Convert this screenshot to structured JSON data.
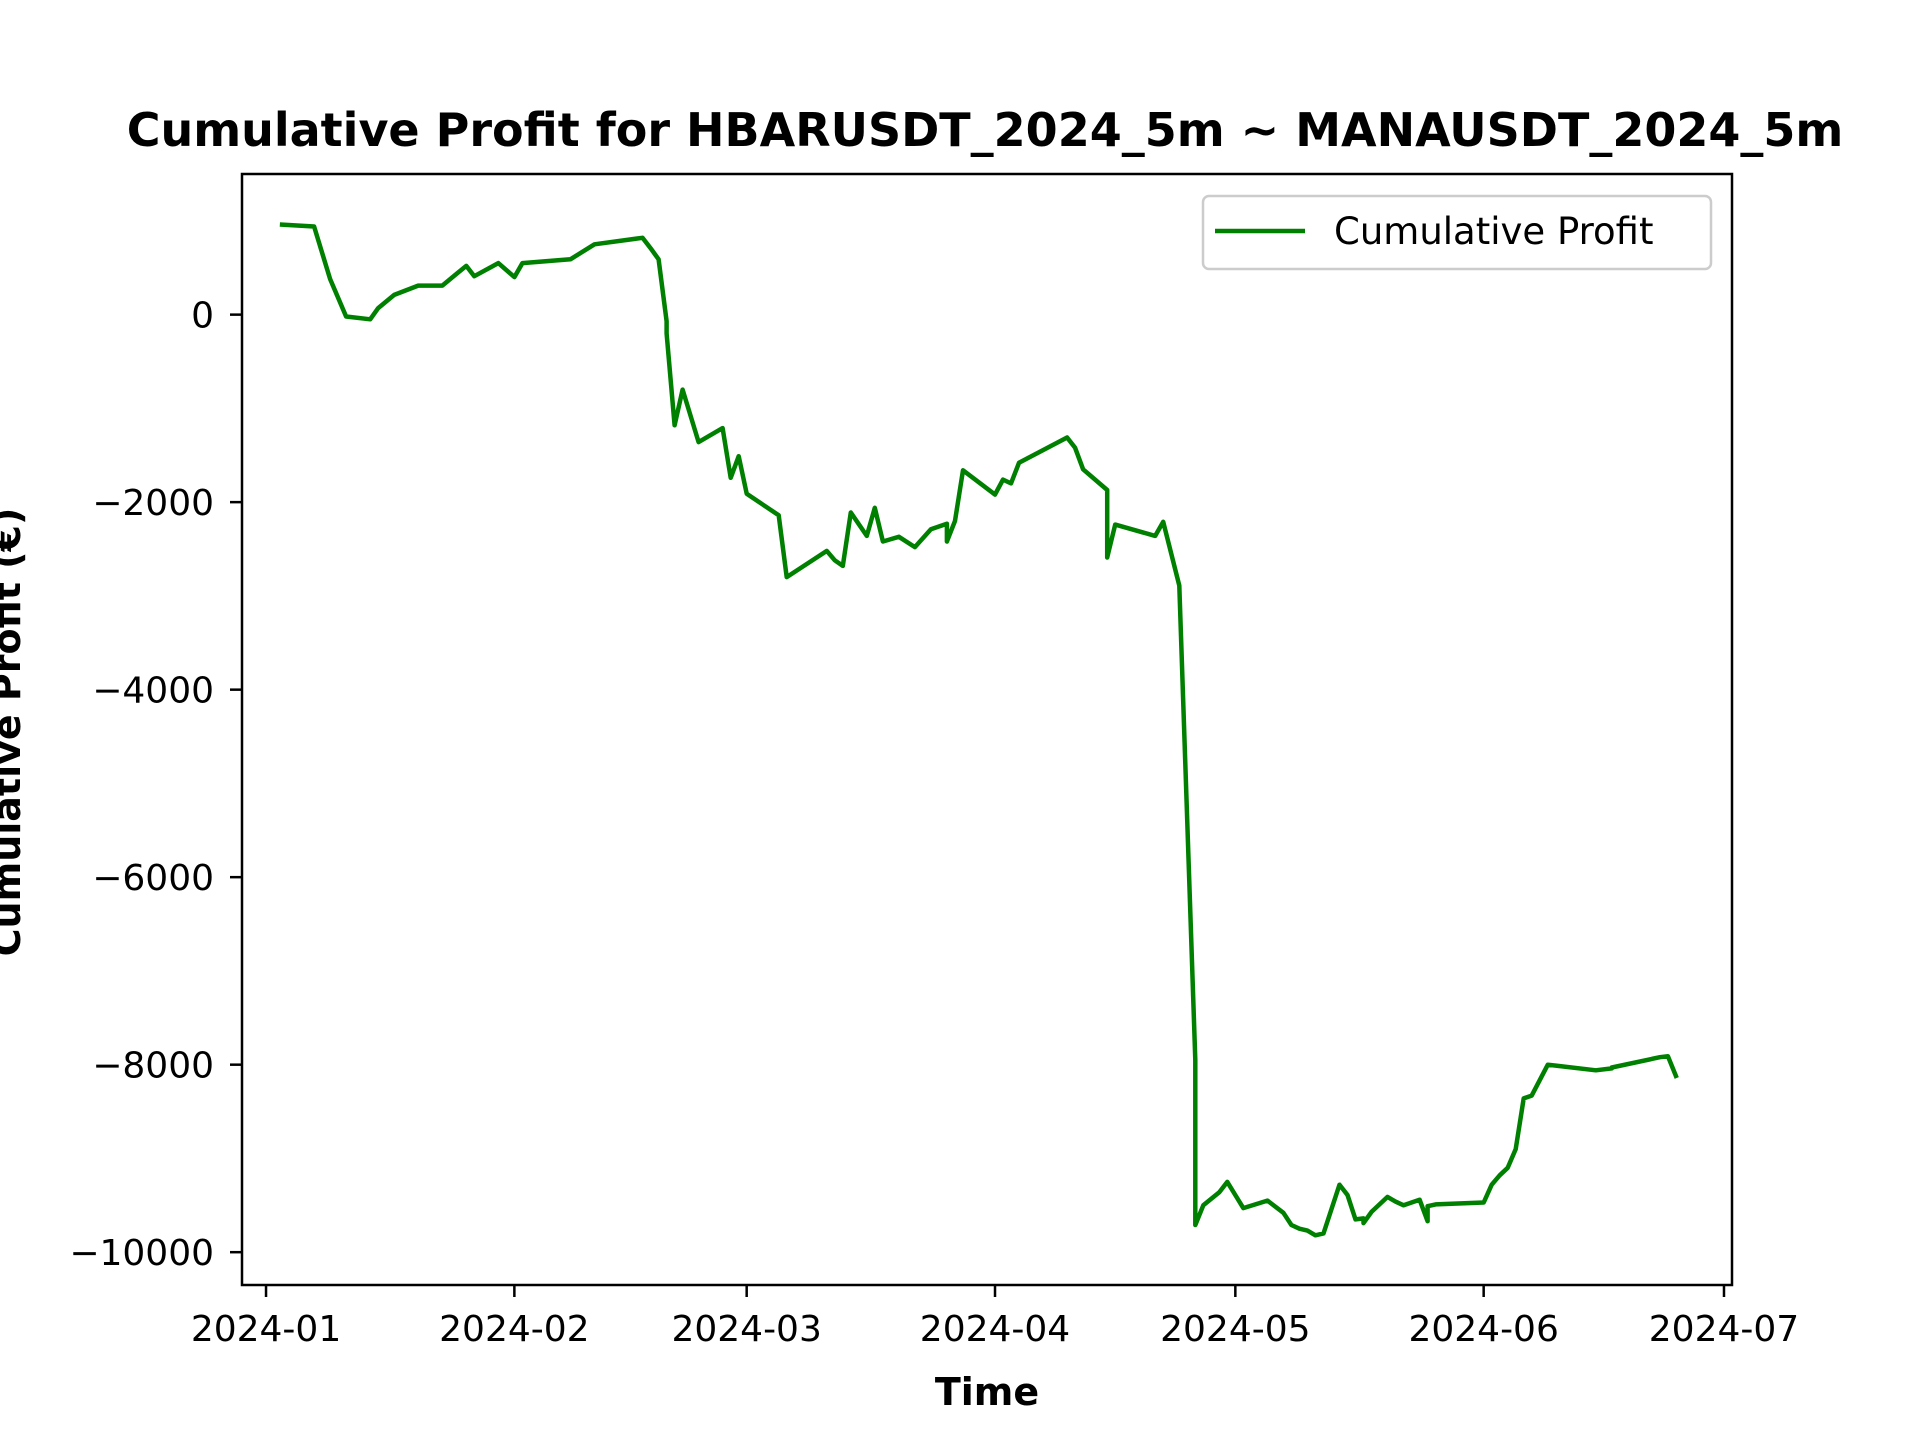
{
  "chart_data": {
    "type": "line",
    "title": "Cumulative Profit for HBARUSDT_2024_5m ~ MANAUSDT_2024_5m",
    "xlabel": "Time",
    "ylabel": "Cumulative Profit (€)",
    "ylim": [
      -10350,
      1500
    ],
    "xlim": [
      "2023-12-29",
      "2024-07-02"
    ],
    "x_ticks": [
      "2024-01",
      "2024-02",
      "2024-03",
      "2024-04",
      "2024-05",
      "2024-06",
      "2024-07"
    ],
    "y_ticks": [
      0,
      -2000,
      -4000,
      -6000,
      -8000,
      -10000
    ],
    "y_tick_labels": [
      "0",
      "−2000",
      "−4000",
      "−6000",
      "−8000",
      "−10000"
    ],
    "grid": false,
    "legend_position": "top-right",
    "color": "#008000",
    "series": [
      {
        "name": "Cumulative Profit",
        "x": [
          "2024-01-03",
          "2024-01-07",
          "2024-01-09",
          "2024-01-11",
          "2024-01-14",
          "2024-01-15",
          "2024-01-17",
          "2024-01-20",
          "2024-01-23",
          "2024-01-25",
          "2024-01-26",
          "2024-01-27",
          "2024-01-30",
          "2024-02-01",
          "2024-02-02",
          "2024-02-08",
          "2024-02-11",
          "2024-02-17",
          "2024-02-18",
          "2024-02-19",
          "2024-02-20",
          "2024-02-20",
          "2024-02-21",
          "2024-02-22",
          "2024-02-24",
          "2024-02-27",
          "2024-02-28",
          "2024-02-29",
          "2024-03-01",
          "2024-03-05",
          "2024-03-06",
          "2024-03-11",
          "2024-03-12",
          "2024-03-13",
          "2024-03-14",
          "2024-03-16",
          "2024-03-17",
          "2024-03-18",
          "2024-03-20",
          "2024-03-22",
          "2024-03-24",
          "2024-03-26",
          "2024-03-26",
          "2024-03-27",
          "2024-03-28",
          "2024-04-01",
          "2024-04-02",
          "2024-04-03",
          "2024-04-04",
          "2024-04-10",
          "2024-04-11",
          "2024-04-12",
          "2024-04-15",
          "2024-04-15",
          "2024-04-16",
          "2024-04-21",
          "2024-04-22",
          "2024-04-24",
          "2024-04-26",
          "2024-04-26",
          "2024-04-27",
          "2024-04-29",
          "2024-04-30",
          "2024-05-01",
          "2024-05-02",
          "2024-05-05",
          "2024-05-07",
          "2024-05-08",
          "2024-05-09",
          "2024-05-10",
          "2024-05-11",
          "2024-05-12",
          "2024-05-14",
          "2024-05-15",
          "2024-05-16",
          "2024-05-17",
          "2024-05-17",
          "2024-05-18",
          "2024-05-20",
          "2024-05-21",
          "2024-05-22",
          "2024-05-24",
          "2024-05-25",
          "2024-05-25",
          "2024-05-26",
          "2024-06-01",
          "2024-06-02",
          "2024-06-03",
          "2024-06-04",
          "2024-06-05",
          "2024-06-06",
          "2024-06-07",
          "2024-06-09",
          "2024-06-10",
          "2024-06-15",
          "2024-06-17",
          "2024-06-17",
          "2024-06-23",
          "2024-06-24",
          "2024-06-25"
        ],
        "values": [
          960,
          940,
          380,
          -20,
          -50,
          70,
          210,
          310,
          310,
          450,
          520,
          410,
          550,
          400,
          550,
          590,
          750,
          820,
          710,
          590,
          -70,
          -200,
          -1180,
          -800,
          -1360,
          -1210,
          -1740,
          -1510,
          -1910,
          -2140,
          -2800,
          -2520,
          -2620,
          -2680,
          -2110,
          -2360,
          -2060,
          -2420,
          -2370,
          -2480,
          -2290,
          -2230,
          -2420,
          -2200,
          -1660,
          -1920,
          -1760,
          -1800,
          -1580,
          -1310,
          -1420,
          -1650,
          -1870,
          -2590,
          -2240,
          -2360,
          -2210,
          -2890,
          -7950,
          -9710,
          -9500,
          -9360,
          -9250,
          -9390,
          -9530,
          -9450,
          -9580,
          -9710,
          -9750,
          -9770,
          -9820,
          -9800,
          -9280,
          -9390,
          -9650,
          -9640,
          -9690,
          -9570,
          -9410,
          -9460,
          -9500,
          -9440,
          -9670,
          -9510,
          -9490,
          -9470,
          -9280,
          -9180,
          -9100,
          -8900,
          -8360,
          -8330,
          -8000,
          -8010,
          -8060,
          -8040,
          -8030,
          -7920,
          -7910,
          -8120
        ]
      }
    ]
  }
}
